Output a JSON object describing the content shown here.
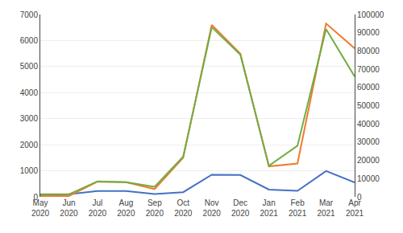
{
  "chart_data": {
    "type": "line",
    "categories": [
      "May\n2020",
      "Jun\n2020",
      "Jul\n2020",
      "Aug\n2020",
      "Sep\n2020",
      "Oct\n2020",
      "Nov\n2020",
      "Dec\n2020",
      "Jan\n2021",
      "Feb\n2021",
      "Mar\n2021",
      "Apr\n2021"
    ],
    "series": [
      {
        "color": "#70AD47",
        "axis": "y2",
        "values": [
          1400,
          1400,
          8500,
          8000,
          5500,
          22000,
          93000,
          78000,
          17000,
          28000,
          92000,
          66000
        ]
      },
      {
        "color": "#4472C4",
        "values": [
          80,
          100,
          220,
          220,
          110,
          180,
          850,
          840,
          280,
          230,
          990,
          550
        ]
      },
      {
        "color": "#ED7D31",
        "values": [
          30,
          30,
          580,
          560,
          300,
          1500,
          6600,
          5500,
          1170,
          1280,
          6650,
          5700
        ]
      }
    ],
    "ylim": [
      0,
      7000
    ],
    "yticks": [
      0,
      1000,
      2000,
      3000,
      4000,
      5000,
      6000,
      7000
    ],
    "y2lim": [
      0,
      100000
    ],
    "y2ticks": [
      0,
      10000,
      20000,
      30000,
      40000,
      50000,
      60000,
      70000,
      80000,
      90000,
      100000
    ],
    "grid": true
  }
}
